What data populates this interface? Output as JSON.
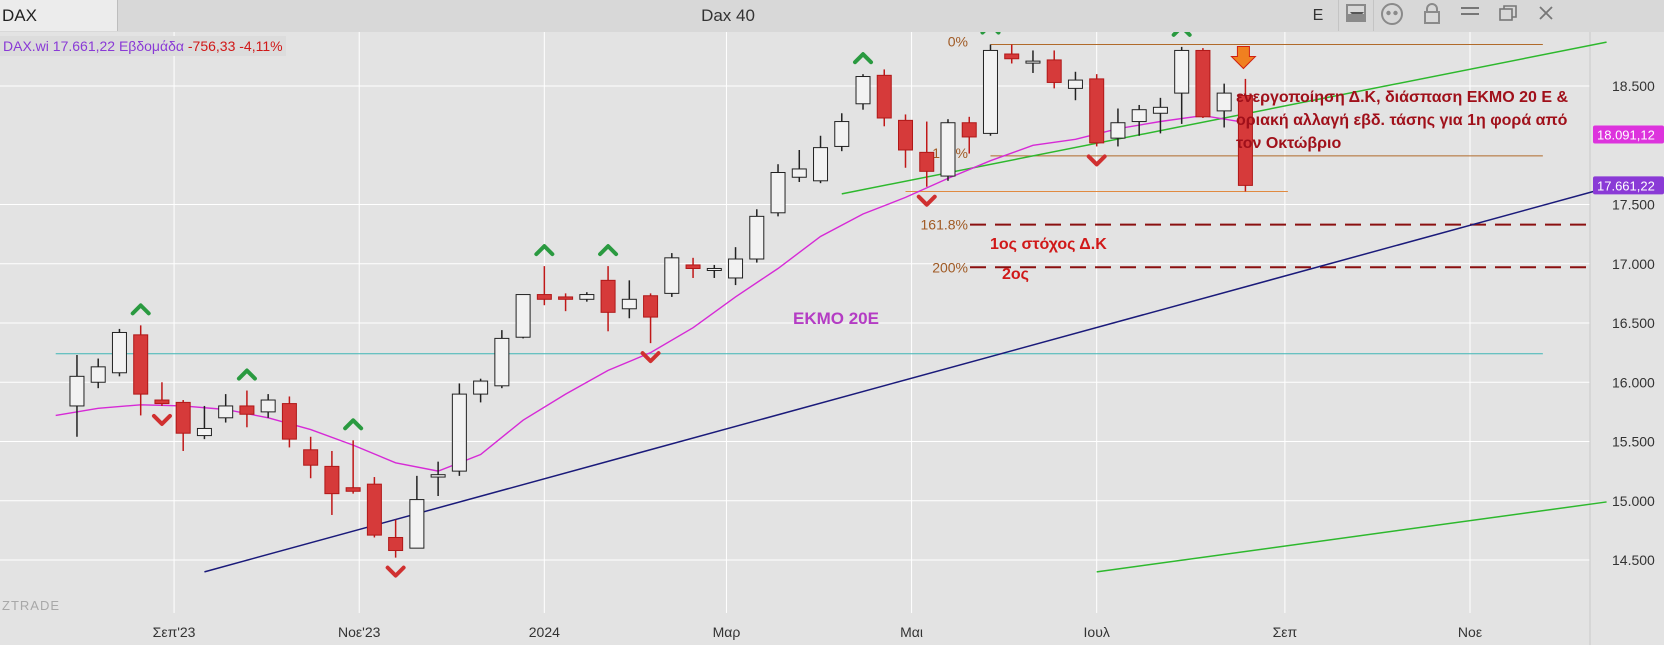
{
  "header": {
    "symbol": "DAX",
    "title": "Dax 40",
    "e_label": "E"
  },
  "info": {
    "text": "DAX.wi 17.661,22 Εβδομάδα",
    "change": "-756,33 -4,11%"
  },
  "colors": {
    "up": "#f2f2f2",
    "down": "#d63a3a",
    "ema": "#d62ad6",
    "trend_blue": "#1a1a7a",
    "trend_green": "#2db82d",
    "fib": "#b06a2a",
    "annotation": "#d01818",
    "horizontal_teal": "#3fb6b6",
    "price_tag_magenta": "#dd33dd",
    "price_tag_purple": "#8a3ad6"
  },
  "chart_data": {
    "type": "candlestick",
    "title": "Dax 40",
    "ylim": [
      14400,
      19350
    ],
    "y_ticks": [
      14500,
      15000,
      15500,
      16000,
      16500,
      17000,
      17500,
      18500
    ],
    "y_tick_labels": [
      "14.500",
      "15.000",
      "15.500",
      "16.000",
      "16.500",
      "17.000",
      "17.500",
      "18.500"
    ],
    "x_ticks": [
      {
        "date": "2023-09-01",
        "label": "Σεπ'23"
      },
      {
        "date": "2023-11-01",
        "label": "Νοε'23"
      },
      {
        "date": "2024-01-01",
        "label": "2024"
      },
      {
        "date": "2024-03-01",
        "label": "Μαρ"
      },
      {
        "date": "2024-05-01",
        "label": "Μαι"
      },
      {
        "date": "2024-07-01",
        "label": "Ιουλ"
      },
      {
        "date": "2024-09-01",
        "label": "Σεπ"
      },
      {
        "date": "2024-11-01",
        "label": "Νοε"
      }
    ],
    "candles": [
      {
        "date": "2023-07-31",
        "open": 15800,
        "high": 16230,
        "low": 15540,
        "close": 16050
      },
      {
        "date": "2023-08-07",
        "open": 16000,
        "high": 16200,
        "low": 15950,
        "close": 16130
      },
      {
        "date": "2023-08-14",
        "open": 16080,
        "high": 16450,
        "low": 16050,
        "close": 16420
      },
      {
        "date": "2023-08-21",
        "open": 16400,
        "high": 16480,
        "low": 15720,
        "close": 15900
      },
      {
        "date": "2023-08-28",
        "open": 15850,
        "high": 16000,
        "low": 15800,
        "close": 15820
      },
      {
        "date": "2023-09-04",
        "open": 15830,
        "high": 15850,
        "low": 15420,
        "close": 15570
      },
      {
        "date": "2023-09-11",
        "open": 15550,
        "high": 15800,
        "low": 15520,
        "close": 15610
      },
      {
        "date": "2023-09-18",
        "open": 15700,
        "high": 15900,
        "low": 15660,
        "close": 15800
      },
      {
        "date": "2023-09-25",
        "open": 15800,
        "high": 15930,
        "low": 15620,
        "close": 15730
      },
      {
        "date": "2023-10-02",
        "open": 15750,
        "high": 15900,
        "low": 15700,
        "close": 15850
      },
      {
        "date": "2023-10-09",
        "open": 15820,
        "high": 15880,
        "low": 15450,
        "close": 15520
      },
      {
        "date": "2023-10-16",
        "open": 15430,
        "high": 15540,
        "low": 15190,
        "close": 15300
      },
      {
        "date": "2023-10-23",
        "open": 15290,
        "high": 15420,
        "low": 14880,
        "close": 15060
      },
      {
        "date": "2023-10-30",
        "open": 15110,
        "high": 15510,
        "low": 15060,
        "close": 15080
      },
      {
        "date": "2023-11-06",
        "open": 15140,
        "high": 15200,
        "low": 14690,
        "close": 14710
      },
      {
        "date": "2023-11-13",
        "open": 14690,
        "high": 14840,
        "low": 14520,
        "close": 14580
      },
      {
        "date": "2023-11-20",
        "open": 14600,
        "high": 15210,
        "low": 14600,
        "close": 15010
      },
      {
        "date": "2023-11-27",
        "open": 15200,
        "high": 15330,
        "low": 15040,
        "close": 15220
      },
      {
        "date": "2023-12-04",
        "open": 15250,
        "high": 15990,
        "low": 15210,
        "close": 15900
      },
      {
        "date": "2023-12-11",
        "open": 15900,
        "high": 16030,
        "low": 15830,
        "close": 16010
      },
      {
        "date": "2023-12-18",
        "open": 15970,
        "high": 16440,
        "low": 15950,
        "close": 16370
      },
      {
        "date": "2023-12-25",
        "open": 16380,
        "high": 16730,
        "low": 16370,
        "close": 16740
      },
      {
        "date": "2024-01-01",
        "open": 16740,
        "high": 16980,
        "low": 16650,
        "close": 16700
      },
      {
        "date": "2024-01-08",
        "open": 16720,
        "high": 16750,
        "low": 16600,
        "close": 16700
      },
      {
        "date": "2024-01-15",
        "open": 16700,
        "high": 16760,
        "low": 16680,
        "close": 16740
      },
      {
        "date": "2024-01-22",
        "open": 16860,
        "high": 16980,
        "low": 16430,
        "close": 16590
      },
      {
        "date": "2024-01-29",
        "open": 16620,
        "high": 16860,
        "low": 16540,
        "close": 16700
      },
      {
        "date": "2024-02-05",
        "open": 16730,
        "high": 16750,
        "low": 16330,
        "close": 16550
      },
      {
        "date": "2024-02-12",
        "open": 16750,
        "high": 17090,
        "low": 16720,
        "close": 17050
      },
      {
        "date": "2024-02-19",
        "open": 16990,
        "high": 17050,
        "low": 16880,
        "close": 16960
      },
      {
        "date": "2024-02-26",
        "open": 16960,
        "high": 16990,
        "low": 16880,
        "close": 16960
      },
      {
        "date": "2024-03-04",
        "open": 16880,
        "high": 17140,
        "low": 16820,
        "close": 17040
      },
      {
        "date": "2024-03-11",
        "open": 17040,
        "high": 17460,
        "low": 17010,
        "close": 17400
      },
      {
        "date": "2024-03-18",
        "open": 17430,
        "high": 17840,
        "low": 17400,
        "close": 17770
      },
      {
        "date": "2024-03-25",
        "open": 17730,
        "high": 17960,
        "low": 17690,
        "close": 17800
      },
      {
        "date": "2024-04-01",
        "open": 17700,
        "high": 18080,
        "low": 17680,
        "close": 17980
      },
      {
        "date": "2024-04-08",
        "open": 17990,
        "high": 18270,
        "low": 17950,
        "close": 18200
      },
      {
        "date": "2024-04-15",
        "open": 18350,
        "high": 18600,
        "low": 18300,
        "close": 18580
      },
      {
        "date": "2024-04-22",
        "open": 18590,
        "high": 18640,
        "low": 18160,
        "close": 18230
      },
      {
        "date": "2024-04-29",
        "open": 18210,
        "high": 18260,
        "low": 17810,
        "close": 17960
      },
      {
        "date": "2024-05-06",
        "open": 17940,
        "high": 18200,
        "low": 17650,
        "close": 17780
      },
      {
        "date": "2024-05-13",
        "open": 17740,
        "high": 18220,
        "low": 17700,
        "close": 18190
      },
      {
        "date": "2024-05-20",
        "open": 18190,
        "high": 18240,
        "low": 17930,
        "close": 18070
      },
      {
        "date": "2024-05-27",
        "open": 18100,
        "high": 18850,
        "low": 18080,
        "close": 18800
      },
      {
        "date": "2024-06-03",
        "open": 18770,
        "high": 18850,
        "low": 18690,
        "close": 18730
      },
      {
        "date": "2024-06-10",
        "open": 18710,
        "high": 18800,
        "low": 18610,
        "close": 18710
      },
      {
        "date": "2024-06-17",
        "open": 18720,
        "high": 18800,
        "low": 18480,
        "close": 18530
      },
      {
        "date": "2024-06-24",
        "open": 18480,
        "high": 18620,
        "low": 18380,
        "close": 18550
      },
      {
        "date": "2024-07-01",
        "open": 18560,
        "high": 18600,
        "low": 17990,
        "close": 18020
      },
      {
        "date": "2024-07-08",
        "open": 18060,
        "high": 18310,
        "low": 17990,
        "close": 18190
      },
      {
        "date": "2024-07-15",
        "open": 18200,
        "high": 18340,
        "low": 18080,
        "close": 18300
      },
      {
        "date": "2024-07-22",
        "open": 18270,
        "high": 18400,
        "low": 18100,
        "close": 18320
      },
      {
        "date": "2024-07-29",
        "open": 18440,
        "high": 18830,
        "low": 18180,
        "close": 18800
      },
      {
        "date": "2024-08-05",
        "open": 18800,
        "high": 18820,
        "low": 18230,
        "close": 18240
      },
      {
        "date": "2024-08-12",
        "open": 18290,
        "high": 18520,
        "low": 18150,
        "close": 18440
      },
      {
        "date": "2024-08-19",
        "open": 18420,
        "high": 18560,
        "low": 17610,
        "close": 17661.22
      }
    ],
    "ema": {
      "label": "ΕΚΜΟ 20Ε",
      "points": [
        [
          "2023-07-24",
          15720
        ],
        [
          "2023-08-07",
          15780
        ],
        [
          "2023-08-21",
          15810
        ],
        [
          "2023-09-04",
          15800
        ],
        [
          "2023-09-18",
          15770
        ],
        [
          "2023-10-02",
          15700
        ],
        [
          "2023-10-16",
          15600
        ],
        [
          "2023-10-30",
          15470
        ],
        [
          "2023-11-13",
          15320
        ],
        [
          "2023-11-27",
          15250
        ],
        [
          "2023-12-11",
          15390
        ],
        [
          "2023-12-25",
          15680
        ],
        [
          "2024-01-08",
          15900
        ],
        [
          "2024-01-22",
          16100
        ],
        [
          "2024-02-05",
          16250
        ],
        [
          "2024-02-19",
          16460
        ],
        [
          "2024-03-04",
          16720
        ],
        [
          "2024-03-18",
          16960
        ],
        [
          "2024-04-01",
          17230
        ],
        [
          "2024-04-15",
          17420
        ],
        [
          "2024-04-29",
          17560
        ],
        [
          "2024-05-13",
          17720
        ],
        [
          "2024-05-27",
          17870
        ],
        [
          "2024-06-10",
          18000
        ],
        [
          "2024-06-24",
          18050
        ],
        [
          "2024-07-08",
          18140
        ],
        [
          "2024-07-22",
          18200
        ],
        [
          "2024-08-05",
          18250
        ],
        [
          "2024-08-19",
          18191
        ]
      ]
    },
    "trendlines": [
      {
        "name": "blue-trend",
        "color": "#1a1a7a",
        "from": [
          "2023-09-11",
          14400
        ],
        "to": [
          "2024-12-16",
          17640
        ]
      },
      {
        "name": "green-trend-upper",
        "color": "#2db82d",
        "from": [
          "2024-04-08",
          17590
        ],
        "to": [
          "2024-12-16",
          18870
        ]
      },
      {
        "name": "green-trend-lower",
        "color": "#2db82d",
        "from": [
          "2024-07-01",
          14400
        ],
        "to": [
          "2024-12-16",
          14990
        ]
      }
    ],
    "horizontal_lines": [
      {
        "name": "teal-line",
        "value": 16240,
        "color": "#3fb6b6",
        "from": "2023-07-24",
        "to": "2024-11-25"
      },
      {
        "name": "fib-0",
        "value": 18850,
        "color": "#b06a2a",
        "from": "2024-05-27",
        "to": "2024-11-25",
        "label": "0%"
      },
      {
        "name": "fib-100",
        "value": 17910,
        "color": "#b06a2a",
        "from": "2024-05-27",
        "to": "2024-11-25",
        "label": "100%"
      },
      {
        "name": "low-line",
        "value": 17610,
        "color": "#e08a40",
        "from": "2024-04-29",
        "to": "2024-09-02"
      }
    ],
    "fib_extensions": [
      {
        "label": "161.8%",
        "value": 17330
      },
      {
        "label": "200%",
        "value": 16970
      }
    ],
    "markers_up": [
      "2023-08-21",
      "2023-09-25",
      "2023-10-30",
      "2024-01-01",
      "2024-01-22",
      "2024-04-15",
      "2024-05-27",
      "2024-07-29"
    ],
    "markers_down": [
      "2023-08-28",
      "2023-11-13",
      "2024-02-05",
      "2024-05-06",
      "2024-07-01"
    ],
    "big_arrows": [
      "2024-06-03",
      "2024-08-05"
    ],
    "orange_arrow": "2024-08-19",
    "price_tags": [
      {
        "value": 18091.12,
        "label": "18.091,12",
        "color": "#dd33dd"
      },
      {
        "value": 17661.22,
        "label": "17.661,22",
        "color": "#8a3ad6"
      }
    ],
    "annotations": {
      "main_lines": [
        "ενεργοποίηση Δ.Κ, διάσπαση ΕΚΜΟ 20 Ε &",
        "οριακή αλλαγή εβδ. τάσης για 1η φορά από",
        "τον Οκτώβριο"
      ],
      "target1": "1ος στόχος Δ.Κ",
      "target2": "2ος"
    },
    "watermark": "ZTRADE"
  }
}
